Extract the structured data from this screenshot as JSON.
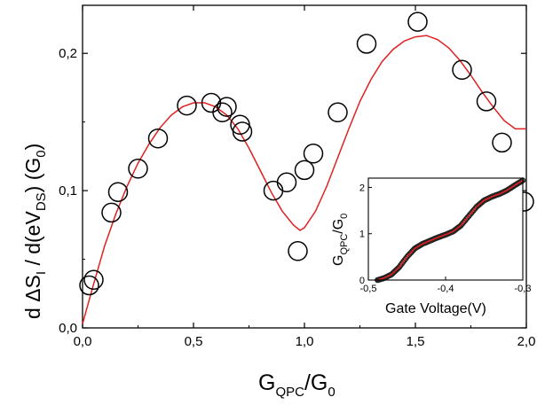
{
  "chart_data": [
    {
      "type": "scatter",
      "xlabel": {
        "main": "G",
        "sub1": "QPC",
        "mid": "/G",
        "sub2": "0"
      },
      "ylabel": {
        "p1": "d ΔS",
        "s1": "I",
        "p2": " / d(eV",
        "s2": "DS",
        "p3": ") (G",
        "s3": "0",
        "p4": ")"
      },
      "xlim": [
        0,
        2.0
      ],
      "ylim": [
        0,
        0.235
      ],
      "x_ticks": [
        {
          "value": 0.0,
          "label": "0,0"
        },
        {
          "value": 0.5,
          "label": "0,5"
        },
        {
          "value": 1.0,
          "label": "1,0"
        },
        {
          "value": 1.5,
          "label": "1,5"
        },
        {
          "value": 2.0,
          "label": "2,0"
        }
      ],
      "y_ticks": [
        {
          "value": 0.0,
          "label": "0,0"
        },
        {
          "value": 0.1,
          "label": "0,1"
        },
        {
          "value": 0.2,
          "label": "0,2"
        }
      ],
      "series": [
        {
          "type": "scatter",
          "marker": "open-circle",
          "color": "#000000",
          "x": [
            0.03,
            0.05,
            0.13,
            0.16,
            0.25,
            0.34,
            0.47,
            0.58,
            0.63,
            0.65,
            0.71,
            0.72,
            0.86,
            0.92,
            0.97,
            1.0,
            1.04,
            1.15,
            1.28,
            1.51,
            1.71,
            1.82,
            1.89,
            1.99
          ],
          "y": [
            0.031,
            0.035,
            0.084,
            0.099,
            0.116,
            0.138,
            0.162,
            0.164,
            0.157,
            0.161,
            0.148,
            0.143,
            0.1,
            0.106,
            0.056,
            0.115,
            0.127,
            0.157,
            0.207,
            0.223,
            0.188,
            0.165,
            0.135,
            0.092
          ]
        },
        {
          "type": "line",
          "color": "#e02020",
          "x": [
            0.0,
            0.05,
            0.1,
            0.15,
            0.2,
            0.25,
            0.3,
            0.35,
            0.4,
            0.45,
            0.5,
            0.55,
            0.6,
            0.65,
            0.7,
            0.75,
            0.8,
            0.85,
            0.9,
            0.95,
            0.98,
            1.0,
            1.05,
            1.1,
            1.15,
            1.2,
            1.25,
            1.3,
            1.35,
            1.4,
            1.45,
            1.5,
            1.55,
            1.6,
            1.65,
            1.7,
            1.75,
            1.8,
            1.85,
            1.9,
            1.95,
            2.0
          ],
          "y": [
            0.003,
            0.032,
            0.06,
            0.083,
            0.103,
            0.12,
            0.134,
            0.146,
            0.155,
            0.161,
            0.164,
            0.164,
            0.161,
            0.155,
            0.145,
            0.131,
            0.115,
            0.099,
            0.085,
            0.075,
            0.071,
            0.073,
            0.085,
            0.103,
            0.124,
            0.145,
            0.165,
            0.181,
            0.194,
            0.203,
            0.209,
            0.212,
            0.213,
            0.21,
            0.204,
            0.195,
            0.184,
            0.172,
            0.161,
            0.151,
            0.145,
            0.145
          ]
        }
      ]
    },
    {
      "type": "line",
      "inset": true,
      "xlabel": "Gate Voltage(V)",
      "ylabel": {
        "p1": "G",
        "s1": "QPC",
        "p2": "/G",
        "s2": "0"
      },
      "xlim": [
        -0.5,
        -0.3
      ],
      "ylim": [
        0,
        2.2
      ],
      "x_ticks": [
        {
          "value": -0.5,
          "label": "-0,5"
        },
        {
          "value": -0.4,
          "label": "-0,4"
        },
        {
          "value": -0.3,
          "label": "-0,3"
        }
      ],
      "y_ticks": [
        {
          "value": 0,
          "label": "0"
        },
        {
          "value": 1,
          "label": "1"
        },
        {
          "value": 2,
          "label": "2"
        }
      ],
      "series": [
        {
          "color": "#e02020",
          "marker_color": "#222222",
          "x": [
            -0.488,
            -0.48,
            -0.47,
            -0.46,
            -0.45,
            -0.44,
            -0.43,
            -0.42,
            -0.41,
            -0.4,
            -0.39,
            -0.38,
            -0.37,
            -0.36,
            -0.35,
            -0.34,
            -0.33,
            -0.32,
            -0.31,
            -0.3
          ],
          "y": [
            0.0,
            0.04,
            0.12,
            0.28,
            0.5,
            0.68,
            0.78,
            0.85,
            0.92,
            0.98,
            1.05,
            1.18,
            1.38,
            1.58,
            1.72,
            1.8,
            1.86,
            1.94,
            2.05,
            2.15
          ]
        }
      ]
    }
  ]
}
